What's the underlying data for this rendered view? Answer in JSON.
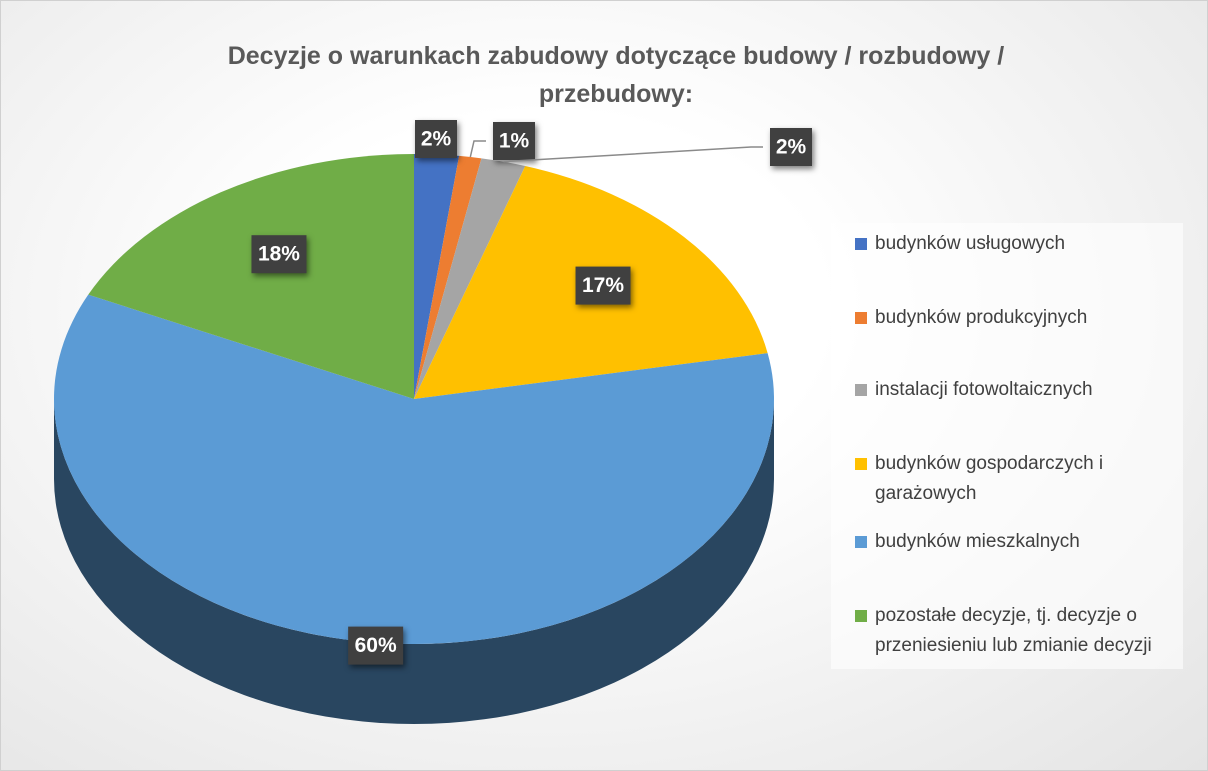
{
  "chart_data": {
    "type": "pie",
    "title": "Decyzje o warunkach zabudowy dotyczące budowy / rozbudowy / przebudowy:",
    "categories": [
      "budynków usługowych",
      "budynków produkcyjnych",
      "instalacji fotowoltaicznych",
      "budynków gospodarczych i garażowych",
      "budynków mieszkalnych",
      "pozostałe decyzje, tj. decyzje o przeniesieniu lub zmianie decyzji"
    ],
    "values": [
      2,
      1,
      2,
      17,
      60,
      18
    ],
    "value_labels": [
      "2%",
      "1%",
      "2%",
      "17%",
      "60%",
      "18%"
    ],
    "colors": [
      "#4472c4",
      "#ed7d31",
      "#a5a5a5",
      "#ffc000",
      "#5b9bd5",
      "#70ad47"
    ],
    "legend": "right"
  }
}
